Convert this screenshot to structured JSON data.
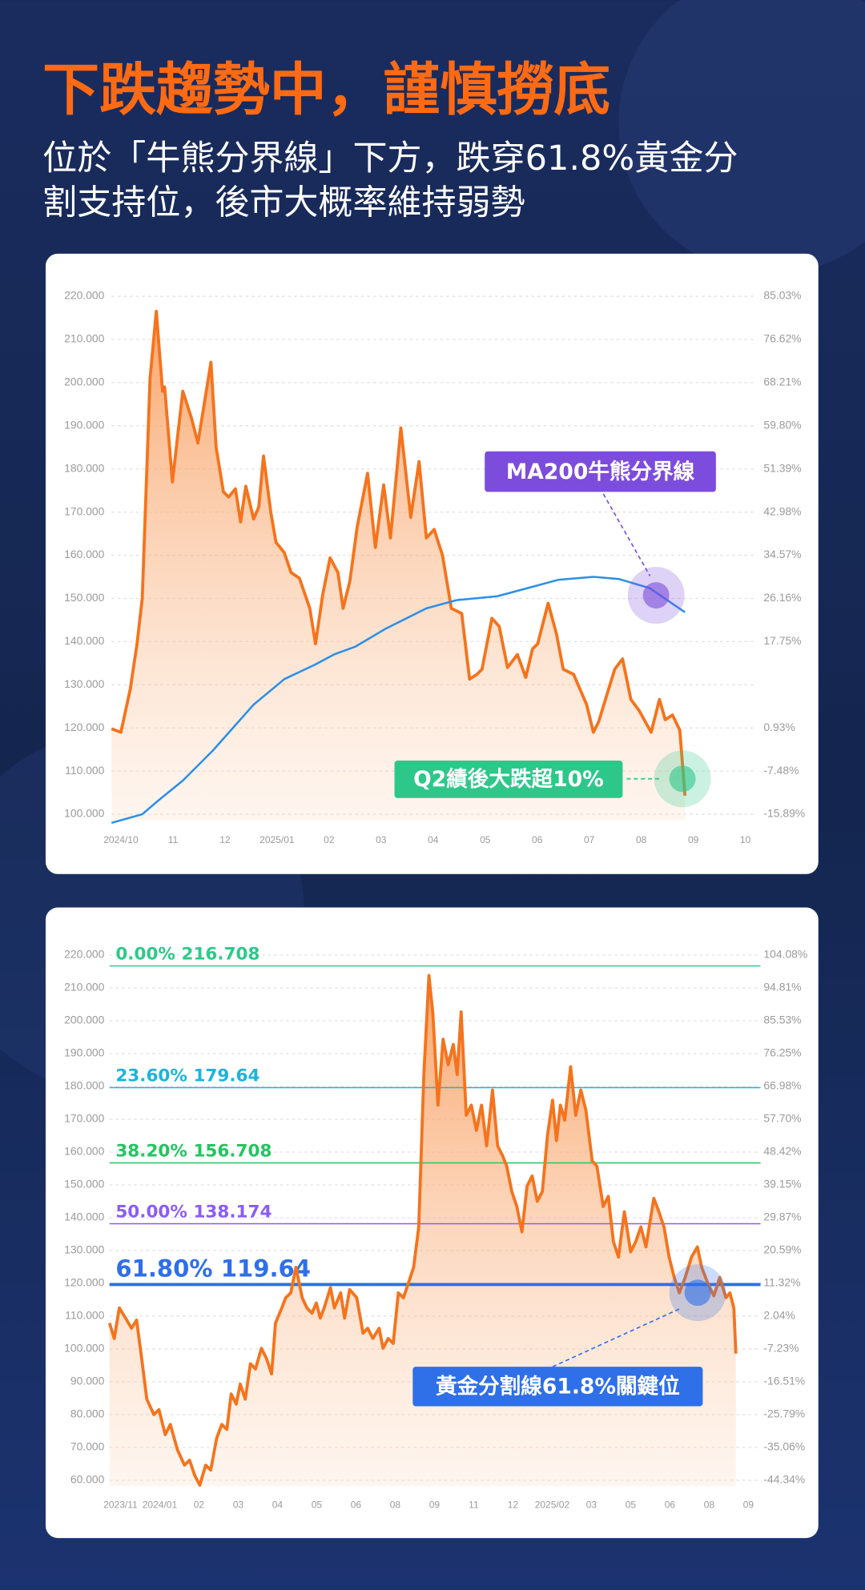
{
  "header": {
    "title": "下跌趨勢中，謹慎撈底",
    "subtitle_lines": [
      "位於「牛熊分界線」下方，跌穿61.8%黃金分",
      "割支持位，後市大概率維持弱勢"
    ]
  },
  "chart_data": [
    {
      "type": "line",
      "grid": true,
      "xlim": [
        -0.18,
        12
      ],
      "xticks": [
        {
          "value": 0,
          "label": "2024/10"
        },
        {
          "value": 1,
          "label": "11"
        },
        {
          "value": 2,
          "label": "12"
        },
        {
          "value": 3,
          "label": "2025/01"
        },
        {
          "value": 4,
          "label": "02"
        },
        {
          "value": 5,
          "label": "03"
        },
        {
          "value": 6,
          "label": "04"
        },
        {
          "value": 7,
          "label": "05"
        },
        {
          "value": 8,
          "label": "06"
        },
        {
          "value": 9,
          "label": "07"
        },
        {
          "value": 10,
          "label": "08"
        },
        {
          "value": 11,
          "label": "09"
        },
        {
          "value": 12,
          "label": "10"
        }
      ],
      "ylim": [
        100,
        220
      ],
      "yticks": [
        {
          "value": 220,
          "label": "220.000"
        },
        {
          "value": 210,
          "label": "210.000"
        },
        {
          "value": 200,
          "label": "200.000"
        },
        {
          "value": 190,
          "label": "190.000"
        },
        {
          "value": 180,
          "label": "180.000"
        },
        {
          "value": 170,
          "label": "170.000"
        },
        {
          "value": 160,
          "label": "160.000"
        },
        {
          "value": 150,
          "label": "150.000"
        },
        {
          "value": 140,
          "label": "140.000"
        },
        {
          "value": 130,
          "label": "130.000"
        },
        {
          "value": 120,
          "label": "120.000"
        },
        {
          "value": 110,
          "label": "110.000"
        },
        {
          "value": 100,
          "label": "100.000"
        }
      ],
      "y2lim": [
        -15.89,
        85.03
      ],
      "y2ticks": [
        {
          "value": 85.03,
          "label": "85.03%"
        },
        {
          "value": 76.62,
          "label": "76.62%"
        },
        {
          "value": 68.21,
          "label": "68.21%"
        },
        {
          "value": 59.8,
          "label": "59.80%"
        },
        {
          "value": 51.39,
          "label": "51.39%"
        },
        {
          "value": 42.98,
          "label": "42.98%"
        },
        {
          "value": 34.57,
          "label": "34.57%"
        },
        {
          "value": 26.16,
          "label": "26.16%"
        },
        {
          "value": 17.75,
          "label": "17.75%"
        },
        {
          "value": 0.93,
          "label": "0.93%"
        },
        {
          "value": -7.48,
          "label": "-7.48%"
        },
        {
          "value": -15.89,
          "label": "-15.89%"
        }
      ],
      "series": [
        {
          "color": "#f5731c",
          "fill": true,
          "x": [
            -0.18,
            0,
            0.18,
            0.31,
            0.41,
            0.56,
            0.68,
            0.8,
            0.84,
            0.99,
            1.09,
            1.19,
            1.35,
            1.48,
            1.73,
            1.83,
            1.97,
            2.07,
            2.2,
            2.3,
            2.4,
            2.55,
            2.65,
            2.74,
            2.88,
            2.98,
            3.14,
            3.27,
            3.43,
            3.63,
            3.74,
            3.88,
            4.02,
            4.17,
            4.27,
            4.4,
            4.54,
            4.74,
            4.89,
            5.05,
            5.18,
            5.38,
            5.57,
            5.73,
            5.87,
            6.02,
            6.18,
            6.35,
            6.55,
            6.7,
            6.84,
            6.94,
            7.13,
            7.27,
            7.43,
            7.62,
            7.78,
            7.91,
            8.01,
            8.21,
            8.37,
            8.5,
            8.7,
            8.95,
            9.08,
            9.18,
            9.37,
            9.49,
            9.64,
            9.8,
            9.95,
            10.19,
            10.35,
            10.46,
            10.6,
            10.74,
            10.84
          ],
          "values": [
            119.8,
            119,
            129,
            139.5,
            150,
            201,
            216.5,
            198,
            199,
            177,
            187.6,
            198,
            192,
            186,
            204.7,
            185,
            174.7,
            173.5,
            175.4,
            167.7,
            176,
            168.4,
            171.2,
            183,
            170,
            163,
            160.6,
            156,
            154.7,
            147.7,
            139.5,
            151,
            159.4,
            156,
            147.7,
            154,
            166.5,
            179,
            161.8,
            176.3,
            164,
            189.5,
            168.8,
            181.7,
            164,
            166,
            160,
            147.7,
            146.5,
            131.3,
            132.4,
            133.6,
            145.4,
            143.5,
            134,
            137,
            131.7,
            138.3,
            139.5,
            148.9,
            141.8,
            133.6,
            132.4,
            125.4,
            119,
            121.4,
            128.9,
            133.6,
            136,
            126.6,
            124.2,
            119,
            126.6,
            121.9,
            123,
            119.5,
            104.3
          ]
        },
        {
          "color": "#2b8fe8",
          "fill": false,
          "x": [
            -0.18,
            0.41,
            0.7,
            1.19,
            1.77,
            2.55,
            3.14,
            3.72,
            4.11,
            4.5,
            5.09,
            5.87,
            6.45,
            7.23,
            7.82,
            8.4,
            9.08,
            9.57,
            10.16,
            10.84
          ],
          "values": [
            98,
            100,
            103,
            107.8,
            114.8,
            125.4,
            131.3,
            134.6,
            137.1,
            138.8,
            143,
            147.7,
            149.6,
            150.5,
            152.4,
            154.3,
            155,
            154.5,
            152.4,
            146.8
          ]
        }
      ],
      "annotations": [
        {
          "text": "MA200牛熊分界線",
          "color": "#7c4ddc"
        },
        {
          "text": "Q2績後大跌超10%",
          "color": "#2ec78a"
        }
      ]
    },
    {
      "type": "line",
      "grid": true,
      "xlim": [
        -0.28,
        16
      ],
      "xticks": [
        {
          "value": 0,
          "label": "2023/11"
        },
        {
          "value": 1,
          "label": "2024/01"
        },
        {
          "value": 2,
          "label": "02"
        },
        {
          "value": 3,
          "label": "03"
        },
        {
          "value": 4,
          "label": "04"
        },
        {
          "value": 5,
          "label": "05"
        },
        {
          "value": 6,
          "label": "06"
        },
        {
          "value": 7,
          "label": "08"
        },
        {
          "value": 8,
          "label": "09"
        },
        {
          "value": 9,
          "label": "11"
        },
        {
          "value": 10,
          "label": "12"
        },
        {
          "value": 11,
          "label": "2025/02"
        },
        {
          "value": 12,
          "label": "03"
        },
        {
          "value": 13,
          "label": "05"
        },
        {
          "value": 14,
          "label": "06"
        },
        {
          "value": 15,
          "label": "08"
        },
        {
          "value": 16,
          "label": "09"
        }
      ],
      "ylim": [
        60,
        220
      ],
      "yticks": [
        {
          "value": 220,
          "label": "220.000"
        },
        {
          "value": 210,
          "label": "210.000"
        },
        {
          "value": 200,
          "label": "200.000"
        },
        {
          "value": 190,
          "label": "190.000"
        },
        {
          "value": 180,
          "label": "180.000"
        },
        {
          "value": 170,
          "label": "170.000"
        },
        {
          "value": 160,
          "label": "160.000"
        },
        {
          "value": 150,
          "label": "150.000"
        },
        {
          "value": 140,
          "label": "140.000"
        },
        {
          "value": 130,
          "label": "130.000"
        },
        {
          "value": 120,
          "label": "120.000"
        },
        {
          "value": 110,
          "label": "110.000"
        },
        {
          "value": 100,
          "label": "100.000"
        },
        {
          "value": 90,
          "label": "90.000"
        },
        {
          "value": 80,
          "label": "80.000"
        },
        {
          "value": 70,
          "label": "70.000"
        },
        {
          "value": 60,
          "label": "60.000"
        }
      ],
      "y2lim": [
        -44.34,
        104.08
      ],
      "y2ticks": [
        {
          "value": 104.08,
          "label": "104.08%"
        },
        {
          "value": 94.81,
          "label": "94.81%"
        },
        {
          "value": 85.53,
          "label": "85.53%"
        },
        {
          "value": 76.25,
          "label": "76.25%"
        },
        {
          "value": 66.98,
          "label": "66.98%"
        },
        {
          "value": 57.7,
          "label": "57.70%"
        },
        {
          "value": 48.42,
          "label": "48.42%"
        },
        {
          "value": 39.15,
          "label": "39.15%"
        },
        {
          "value": 29.87,
          "label": "29.87%"
        },
        {
          "value": 20.59,
          "label": "20.59%"
        },
        {
          "value": 11.32,
          "label": "11.32%"
        },
        {
          "value": 2.04,
          "label": "2.04%"
        },
        {
          "value": -7.23,
          "label": "-7.23%"
        },
        {
          "value": -16.51,
          "label": "-16.51%"
        },
        {
          "value": -25.79,
          "label": "-25.79%"
        },
        {
          "value": -35.06,
          "label": "-35.06%"
        },
        {
          "value": -44.34,
          "label": "-44.34%"
        }
      ],
      "levels": [
        {
          "ratio": "0.00%",
          "price": 216.708,
          "color": "#2ec98a"
        },
        {
          "ratio": "23.60%",
          "price": 179.64,
          "color": "#1cb4dc"
        },
        {
          "ratio": "38.20%",
          "price": 156.708,
          "color": "#22c55e"
        },
        {
          "ratio": "50.00%",
          "price": 138.174,
          "color": "#8b5cf6"
        },
        {
          "ratio": "61.80%",
          "price": 119.64,
          "color": "#2f6fe8"
        }
      ],
      "series": [
        {
          "color": "#f5731c",
          "fill": true,
          "x": [
            -0.28,
            -0.16,
            -0.03,
            0.13,
            0.28,
            0.41,
            0.54,
            0.67,
            0.85,
            0.98,
            1.14,
            1.27,
            1.45,
            1.63,
            1.76,
            1.89,
            2.02,
            2.17,
            2.3,
            2.45,
            2.58,
            2.71,
            2.82,
            2.95,
            3.05,
            3.18,
            3.31,
            3.44,
            3.59,
            3.72,
            3.85,
            3.95,
            4.11,
            4.21,
            4.34,
            4.47,
            4.63,
            4.75,
            4.88,
            4.99,
            5.09,
            5.19,
            5.35,
            5.45,
            5.61,
            5.71,
            5.84,
            6.02,
            6.18,
            6.3,
            6.43,
            6.59,
            6.69,
            6.82,
            6.95,
            7.08,
            7.21,
            7.34,
            7.47,
            7.6,
            7.73,
            7.86,
            7.96,
            8.09,
            8.22,
            8.35,
            8.48,
            8.58,
            8.68,
            8.81,
            8.94,
            9.07,
            9.2,
            9.33,
            9.48,
            9.61,
            9.74,
            9.84,
            9.97,
            10.1,
            10.23,
            10.36,
            10.49,
            10.62,
            10.75,
            10.88,
            11.01,
            11.11,
            11.21,
            11.32,
            11.47,
            11.6,
            11.73,
            11.86,
            12.02,
            12.14,
            12.3,
            12.43,
            12.56,
            12.69,
            12.84,
            13,
            13.13,
            13.26,
            13.39,
            13.59,
            13.72,
            13.85,
            13.98,
            14.11,
            14.24,
            14.39,
            14.55,
            14.7,
            14.81,
            14.96,
            15.12,
            15.27,
            15.43,
            15.53,
            15.63,
            15.68
          ],
          "values": [
            107.9,
            103.2,
            112.5,
            109.4,
            106.3,
            108.8,
            97,
            84.7,
            80,
            81.5,
            73.9,
            77,
            69.3,
            64.6,
            66.1,
            61.5,
            58.5,
            64.6,
            63.1,
            72.8,
            77,
            75.5,
            86.3,
            83.2,
            89.3,
            84.7,
            95.5,
            93.9,
            100.2,
            97.1,
            92.4,
            107.9,
            112.5,
            115.6,
            117.1,
            124.9,
            115.6,
            112.5,
            110.9,
            114,
            109.4,
            112.5,
            118.7,
            112.5,
            117.1,
            109.4,
            118.1,
            115.6,
            104.8,
            106.3,
            103.2,
            106.3,
            100.2,
            103.2,
            101.7,
            117.1,
            115.6,
            120.2,
            124.9,
            137.2,
            183.6,
            213.8,
            202.1,
            174.3,
            194.4,
            186.6,
            192.8,
            183.6,
            202.7,
            171.2,
            174.3,
            166.6,
            174.3,
            161.9,
            178.9,
            161.9,
            158.8,
            155.8,
            148,
            143.4,
            135.7,
            149.6,
            152.7,
            145,
            148,
            165,
            175.8,
            163.5,
            174.3,
            169.7,
            186,
            171.2,
            178.9,
            172.7,
            157.3,
            155.7,
            143.4,
            146.5,
            132.7,
            128,
            141.8,
            129.6,
            132.7,
            137.2,
            131.1,
            145.9,
            141.8,
            137.2,
            128,
            121.8,
            117.1,
            121.8,
            128,
            131.1,
            124.9,
            120.2,
            116.2,
            121.8,
            115.6,
            117.1,
            112.5,
            98.6
          ]
        }
      ],
      "annotations": [
        {
          "text": "黃金分割線61.8%關鍵位",
          "color": "#2f6fe8"
        }
      ]
    }
  ]
}
